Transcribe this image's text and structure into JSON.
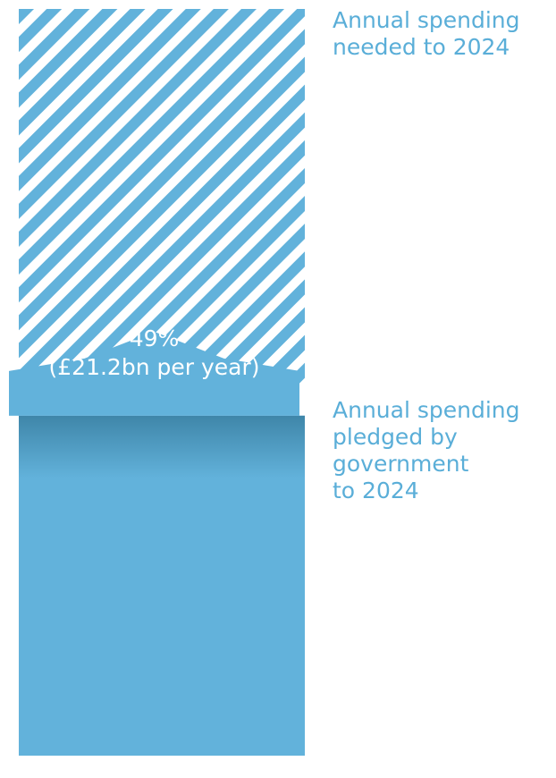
{
  "chart_data": {
    "type": "bar",
    "categories": [
      "Annual spending needed to 2024",
      "Annual spending pledged by government to 2024"
    ],
    "values": [
      100,
      49
    ],
    "unit": "percent of annual spending needed",
    "series": [
      {
        "name": "Annual spending needed to 2024",
        "value": 100,
        "style": "hatched"
      },
      {
        "name": "Annual spending pledged by government to 2024",
        "value": 49,
        "style": "solid"
      }
    ],
    "ylim": [
      0,
      100
    ],
    "callout": {
      "percent": "49%",
      "amount": "(£21.2bn per year)"
    },
    "labels": {
      "needed": [
        "Annual spending",
        "needed to 2024"
      ],
      "pledged": [
        "Annual spending",
        "pledged by",
        "government",
        "to 2024"
      ]
    },
    "colors": {
      "bar": "#62b2db",
      "hatch": "#62b2db",
      "label": "#5aaed8",
      "callout_text": "#ffffff",
      "shade": "#3f86a9"
    }
  }
}
